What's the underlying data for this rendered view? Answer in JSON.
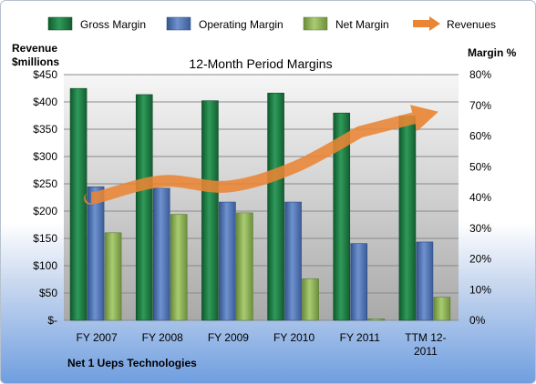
{
  "chart_data": {
    "type": "bar",
    "title": "12-Month Period Margins",
    "company": "Net 1 Ueps Technologies",
    "left_axis_title": [
      "Revenue",
      "$millions"
    ],
    "right_axis_title": "Margin %",
    "categories": [
      "FY 2007",
      "FY 2008",
      "FY 2009",
      "FY 2010",
      "FY 2011",
      "TTM 12-2011"
    ],
    "category_labels": [
      [
        "FY 2007"
      ],
      [
        "FY 2008"
      ],
      [
        "FY 2009"
      ],
      [
        "FY 2010"
      ],
      [
        "FY 2011"
      ],
      [
        "TTM 12-",
        "2011"
      ]
    ],
    "left_ticks": [
      "$-",
      "$50",
      "$100",
      "$150",
      "$200",
      "$250",
      "$300",
      "$350",
      "$400",
      "$450"
    ],
    "right_ticks": [
      "0%",
      "10%",
      "20%",
      "30%",
      "40%",
      "50%",
      "60%",
      "70%",
      "80%"
    ],
    "ylim_left": [
      0,
      450
    ],
    "ylim_right": [
      0,
      80
    ],
    "grid": true,
    "legend_position": "top",
    "series": [
      {
        "name": "Gross Margin",
        "axis": "right",
        "unit": "%",
        "color": "#1e7a44",
        "values": [
          75.5,
          73.5,
          71.5,
          74,
          67.5,
          66.5
        ]
      },
      {
        "name": "Operating Margin",
        "axis": "right",
        "unit": "%",
        "color": "#4f73b5",
        "values": [
          43.5,
          43,
          38.5,
          38.5,
          25,
          25.5
        ]
      },
      {
        "name": "Net Margin",
        "axis": "right",
        "unit": "%",
        "color": "#8cb155",
        "values": [
          28.5,
          34.5,
          35,
          13.5,
          0.5,
          7.5
        ]
      },
      {
        "name": "Revenues",
        "axis": "left",
        "unit": "$millions",
        "type": "line",
        "color": "#e98534",
        "values": [
          225,
          255,
          245,
          280,
          345,
          382
        ]
      }
    ]
  }
}
